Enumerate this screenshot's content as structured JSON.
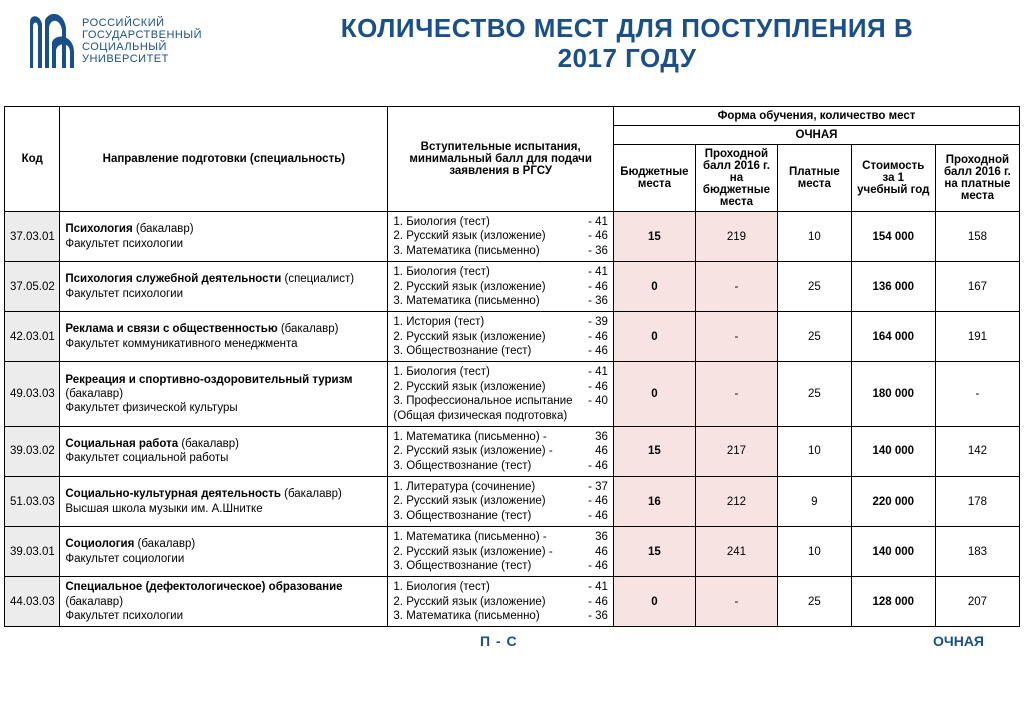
{
  "logo": {
    "line1": "РОССИЙСКИЙ",
    "line2": "ГОСУДАРСТВЕННЫЙ",
    "line3": "СОЦИАЛЬНЫЙ",
    "line4": "УНИВЕРСИТЕТ"
  },
  "title_line1": "КОЛИЧЕСТВО МЕСТ ДЛЯ ПОСТУПЛЕНИЯ В",
  "title_line2": "2017 ГОДУ",
  "colors": {
    "brand": "#1a4f8a",
    "shade": "#f8e3e3",
    "code_bg": "#ececec",
    "grid": "#000000",
    "bg": "#ffffff"
  },
  "head": {
    "top_form": "Форма обучения, количество мест",
    "ochnaya": "ОЧНАЯ",
    "code": "Код",
    "spec": "Направление подготовки (специальность)",
    "exam": "Вступительные испытания, минимальный балл для подачи заявления в РГСУ",
    "budget": "Бюджетные места",
    "pass_budget": "Проходной балл 2016 г. на бюджетные места",
    "paid": "Платные места",
    "cost": "Стоимость за 1 учебный год",
    "pass_paid": "Проходной балл 2016 г. на платные места"
  },
  "rows": [
    {
      "code": "37.03.01",
      "name": "Психология",
      "degree": "(бакалавр)",
      "faculty": "Факультет психологии",
      "exams": [
        {
          "t": "1. Биология  (тест)",
          "s": "-  41"
        },
        {
          "t": "2. Русский язык (изложение)",
          "s": "-  46"
        },
        {
          "t": "3. Математика (письменно)",
          "s": "-  36"
        }
      ],
      "budget": "15",
      "pass_b": "219",
      "paid": "10",
      "cost": "154 000",
      "pass_p": "158"
    },
    {
      "code": "37.05.02",
      "name": "Психология служебной деятельности",
      "degree": "(специалист)",
      "faculty": "Факультет психологии",
      "exams": [
        {
          "t": "1. Биология  (тест)",
          "s": "-  41"
        },
        {
          "t": "2. Русский язык (изложение)",
          "s": "-  46"
        },
        {
          "t": "3. Математика (письменно)",
          "s": "-  36"
        }
      ],
      "budget": "0",
      "pass_b": "-",
      "paid": "25",
      "cost": "136 000",
      "pass_p": "167"
    },
    {
      "code": "42.03.01",
      "name": "Реклама и связи с общественностью",
      "degree": "(бакалавр)",
      "faculty": "Факультет коммуникативного менеджмента",
      "exams": [
        {
          "t": "1. История (тест)",
          "s": "- 39"
        },
        {
          "t": "2. Русский язык (изложение)",
          "s": "- 46"
        },
        {
          "t": "3. Обществознание  (тест)",
          "s": "- 46"
        }
      ],
      "budget": "0",
      "pass_b": "-",
      "paid": "25",
      "cost": "164 000",
      "pass_p": "191"
    },
    {
      "code": "49.03.03",
      "name": "Рекреация и спортивно-оздоровительный туризм",
      "degree": "(бакалавр)",
      "faculty": "Факультет физической культуры",
      "exams": [
        {
          "t": "1. Биология  (тест)",
          "s": "-  41"
        },
        {
          "t": "2. Русский язык (изложение)",
          "s": "-  46"
        },
        {
          "t": "3. Профессиональное испытание",
          "s": "- 40"
        }
      ],
      "exam_note": "(Общая физическая подготовка)",
      "budget": "0",
      "pass_b": "-",
      "paid": "25",
      "cost": "180 000",
      "pass_p": "-"
    },
    {
      "code": "39.03.02",
      "name": "Социальная работа",
      "degree": "(бакалавр)",
      "faculty": "Факультет социальной работы",
      "exams": [
        {
          "t": "1. Математика (письменно) -",
          "s": "36"
        },
        {
          "t": "2. Русский язык (изложение) -",
          "s": "46"
        },
        {
          "t": "3. Обществознание  (тест)",
          "s": "- 46"
        }
      ],
      "budget": "15",
      "pass_b": "217",
      "paid": "10",
      "cost": "140 000",
      "pass_p": "142"
    },
    {
      "code": "51.03.03",
      "name": "Социально-культурная деятельность",
      "degree": "(бакалавр)",
      "faculty": "Высшая школа музыки им. А.Шнитке",
      "exams": [
        {
          "t": "1. Литература  (сочинение)",
          "s": "- 37"
        },
        {
          "t": "2. Русский язык (изложение)",
          "s": "- 46"
        },
        {
          "t": "3. Обществознание  (тест)",
          "s": "- 46"
        }
      ],
      "budget": "16",
      "pass_b": "212",
      "paid": "9",
      "cost": "220 000",
      "pass_p": "178"
    },
    {
      "code": "39.03.01",
      "name": "Социология",
      "degree": "(бакалавр)",
      "faculty": "Факультет социологии",
      "exams": [
        {
          "t": "1. Математика (письменно) -",
          "s": "36"
        },
        {
          "t": "2. Русский язык (изложение) -",
          "s": "46"
        },
        {
          "t": "3. Обществознание  (тест)",
          "s": "- 46"
        }
      ],
      "budget": "15",
      "pass_b": "241",
      "paid": "10",
      "cost": "140 000",
      "pass_p": "183"
    },
    {
      "code": "44.03.03",
      "name": "Специальное (дефектологическое) образование",
      "degree": "(бакалавр)",
      "faculty": "Факультет психологии",
      "exams": [
        {
          "t": "1. Биология  (тест)",
          "s": "-  41"
        },
        {
          "t": "2. Русский язык (изложение)",
          "s": "-  46"
        },
        {
          "t": "3. Математика (письменно)",
          "s": "-  36"
        }
      ],
      "budget": "0",
      "pass_b": "-",
      "paid": "25",
      "cost": "128 000",
      "pass_p": "207"
    }
  ],
  "footer": {
    "left": "П - С",
    "right": "ОЧНАЯ"
  }
}
